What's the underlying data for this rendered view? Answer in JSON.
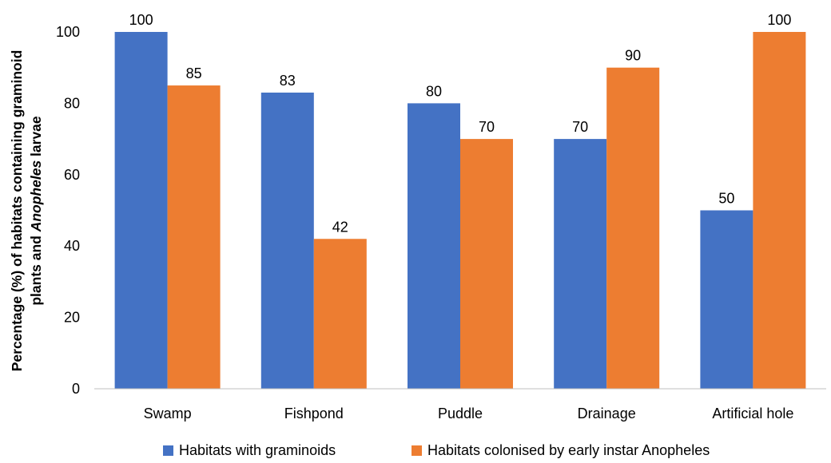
{
  "chart_data": {
    "type": "bar",
    "categories": [
      "Swamp",
      "Fishpond",
      "Puddle",
      "Drainage",
      "Artificial hole"
    ],
    "series": [
      {
        "name": "Habitats with graminoids",
        "color": "#4472C4",
        "values": [
          100,
          83,
          80,
          70,
          50
        ]
      },
      {
        "name": "Habitats colonised by early instar Anopheles",
        "color": "#ED7D31",
        "values": [
          85,
          42,
          70,
          90,
          100
        ]
      }
    ],
    "ylabel_line1": "Percentage (%) of habitats containing graminoid",
    "ylabel_line2_prefix": "plants and ",
    "ylabel_line2_italic": "Anopheles",
    "ylabel_line2_suffix": " larvae",
    "xlabel": "",
    "ylim": [
      0,
      100
    ],
    "yticks": [
      "0",
      "20",
      "40",
      "60",
      "80",
      "100"
    ],
    "grid": false,
    "legend_position": "bottom",
    "data_labels": true
  }
}
